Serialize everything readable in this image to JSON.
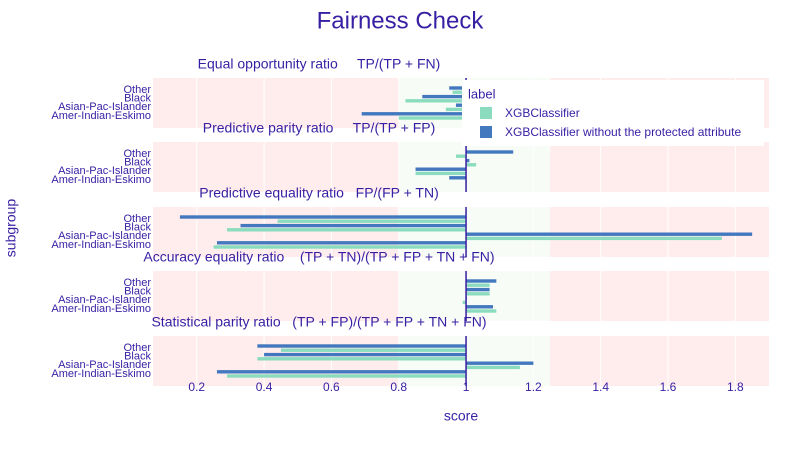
{
  "chart_data": {
    "type": "bar",
    "orientation": "horizontal",
    "title": "Fairness Check",
    "xlabel": "score",
    "ylabel": "subgroup",
    "xlim": [
      0.07,
      1.9
    ],
    "x_ticks": [
      0.2,
      0.4,
      0.6,
      0.8,
      1,
      1.2,
      1.4,
      1.6,
      1.8
    ],
    "reference_line": 1,
    "fair_range": [
      0.8,
      1.25
    ],
    "grid": true,
    "legend": {
      "title": "label",
      "placement": "top-right"
    },
    "categories": [
      "Other",
      "Black",
      "Asian-Pac-Islander",
      "Amer-Indian-Eskimo"
    ],
    "series": [
      {
        "name": "XGBClassifier",
        "color": "#8bdcbe"
      },
      {
        "name": "XGBClassifier without the protected attribute",
        "color": "#4378bf"
      }
    ],
    "panels": [
      {
        "title": "Equal opportunity ratio     TP/(TP + FN)",
        "values": {
          "XGBClassifier": [
            0.96,
            0.82,
            0.94,
            0.8
          ],
          "XGBClassifier without the protected attribute": [
            0.95,
            0.87,
            0.97,
            0.69
          ]
        }
      },
      {
        "title": "Predictive parity ratio     TP/(TP + FP)",
        "values": {
          "XGBClassifier": [
            0.97,
            1.03,
            0.85,
            1.0
          ],
          "XGBClassifier without the protected attribute": [
            1.14,
            1.01,
            0.85,
            0.95
          ]
        }
      },
      {
        "title": "Predictive equality ratio   FP/(FP + TN)",
        "values": {
          "XGBClassifier": [
            0.44,
            0.29,
            1.76,
            0.25
          ],
          "XGBClassifier without the protected attribute": [
            0.15,
            0.33,
            1.85,
            0.26
          ]
        }
      },
      {
        "title": "Accuracy equality ratio    (TP + TN)/(TP + FP + TN + FN)",
        "values": {
          "XGBClassifier": [
            1.07,
            1.07,
            0.99,
            1.09
          ],
          "XGBClassifier without the protected attribute": [
            1.09,
            1.07,
            1.0,
            1.08
          ]
        }
      },
      {
        "title": "Statistical parity ratio   (TP + FP)/(TP + FP + TN + FN)",
        "values": {
          "XGBClassifier": [
            0.45,
            0.38,
            1.16,
            0.29
          ],
          "XGBClassifier without the protected attribute": [
            0.38,
            0.4,
            1.2,
            0.26
          ]
        }
      }
    ]
  }
}
